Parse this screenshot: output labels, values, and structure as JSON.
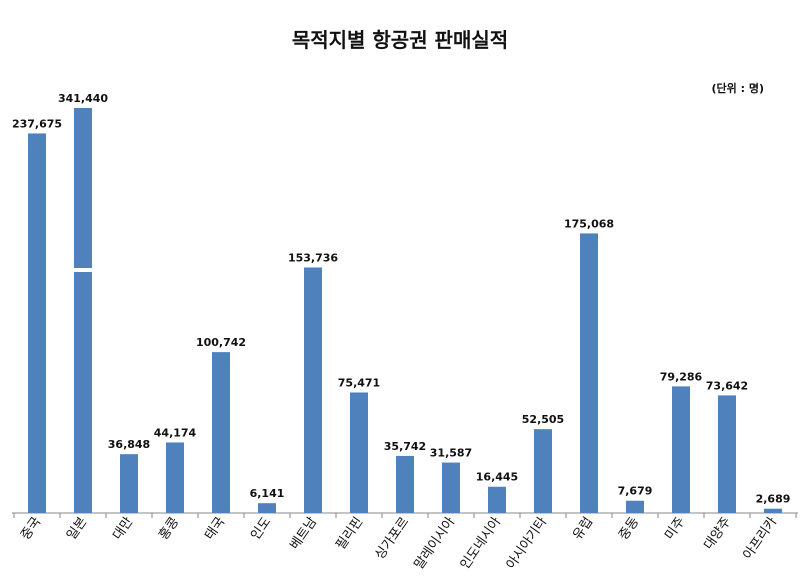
{
  "chart_data": {
    "type": "bar",
    "title": "목적지별 항공권 판매실적",
    "unit_note": "(단위 : 명)",
    "categories": [
      "중국",
      "일본",
      "대만",
      "홍콩",
      "태국",
      "인도",
      "베트남",
      "필리핀",
      "싱가포르",
      "말레이시아",
      "인도네시아",
      "아시아기타",
      "유럽",
      "중동",
      "미주",
      "대양주",
      "아프리카"
    ],
    "values": [
      237675,
      341440,
      36848,
      44174,
      100742,
      6141,
      153736,
      75471,
      35742,
      31587,
      16445,
      52505,
      175068,
      7679,
      79286,
      73642,
      2689
    ],
    "value_labels": [
      "237,675",
      "341,440",
      "36,848",
      "44,174",
      "100,742",
      "6,141",
      "153,736",
      "75,471",
      "35,742",
      "31,587",
      "16,445",
      "52,505",
      "175,068",
      "7,679",
      "79,286",
      "73,642",
      "2,689"
    ],
    "axis_break": {
      "category": "일본",
      "at_value": 255000
    },
    "xlabel": "",
    "ylabel": "",
    "grid": false,
    "bar_color": "#4F81BD",
    "axis_color": "#888888"
  }
}
